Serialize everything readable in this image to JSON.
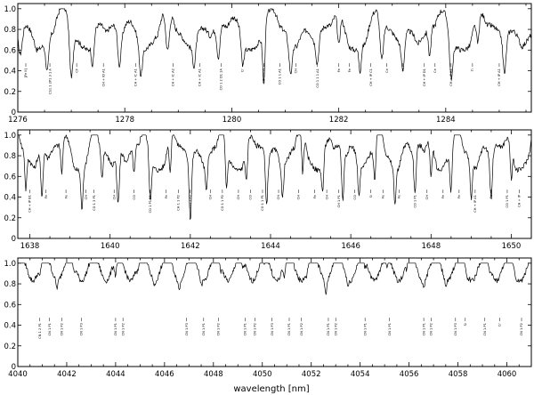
{
  "chart_data": [
    {
      "type": "line",
      "panel": "top",
      "xlim": [
        1276,
        1285.6
      ],
      "ylim": [
        0,
        1.05
      ],
      "x_ticks": [
        "1276",
        "1278",
        "1280",
        "1282",
        "1284"
      ],
      "y_ticks": [
        "0",
        "0.2",
        "0.4",
        "0.6",
        "0.8",
        "1.0"
      ],
      "series": [
        {
          "continuum": 0.72,
          "lines": [
            [
              1276.05,
              0.22,
              0.1
            ],
            [
              1276.55,
              0.3,
              0.08
            ],
            [
              1277.0,
              0.45,
              0.09
            ],
            [
              1277.4,
              0.28,
              0.07
            ],
            [
              1277.9,
              0.38,
              0.09
            ],
            [
              1278.3,
              0.25,
              0.08
            ],
            [
              1278.8,
              0.42,
              0.1
            ],
            [
              1279.3,
              0.22,
              0.07
            ],
            [
              1279.75,
              0.3,
              0.08
            ],
            [
              1280.2,
              0.25,
              0.07
            ],
            [
              1280.6,
              0.52,
              0.06
            ],
            [
              1281.1,
              0.32,
              0.09
            ],
            [
              1281.6,
              0.27,
              0.08
            ],
            [
              1282.0,
              0.3,
              0.07
            ],
            [
              1282.4,
              0.22,
              0.06
            ],
            [
              1282.8,
              0.38,
              0.09
            ],
            [
              1283.2,
              0.3,
              0.08
            ],
            [
              1283.7,
              0.26,
              0.07
            ],
            [
              1284.1,
              0.4,
              0.09
            ],
            [
              1284.6,
              0.26,
              0.07
            ],
            [
              1285.1,
              0.33,
              0.08
            ]
          ]
        }
      ],
      "identifications": [
        {
          "x": 1276.15,
          "label": "[Fe II]"
        },
        {
          "x": 1276.6,
          "label": "CS1 1 2P1 3 1 A"
        },
        {
          "x": 1277.1,
          "label": "CF"
        },
        {
          "x": 1277.6,
          "label": "CH + ID A1"
        },
        {
          "x": 1278.2,
          "label": "CH + IC A1"
        },
        {
          "x": 1278.9,
          "label": "CH + IC A2"
        },
        {
          "x": 1279.4,
          "label": "CH + IC A1"
        },
        {
          "x": 1279.8,
          "label": "CO 1 2 D1 1A"
        },
        {
          "x": 1280.2,
          "label": "Cr"
        },
        {
          "x": 1280.6,
          "label": "CO blend"
        },
        {
          "x": 1280.9,
          "label": "CO 1 1 A1"
        },
        {
          "x": 1281.2,
          "label": "CH"
        },
        {
          "x": 1281.6,
          "label": "CO 1 1 1 A1"
        },
        {
          "x": 1282.0,
          "label": "Fe"
        },
        {
          "x": 1282.2,
          "label": "Fe"
        },
        {
          "x": 1282.6,
          "label": "CH + IP C1"
        },
        {
          "x": 1282.9,
          "label": "Ce"
        },
        {
          "x": 1283.2,
          "label": "H"
        },
        {
          "x": 1283.6,
          "label": "CH + IP D1"
        },
        {
          "x": 1283.8,
          "label": "Ce"
        },
        {
          "x": 1284.1,
          "label": "CH + IP B1"
        },
        {
          "x": 1284.5,
          "label": "Ti"
        },
        {
          "x": 1285.0,
          "label": "CH + IP A1"
        }
      ]
    },
    {
      "type": "line",
      "panel": "middle",
      "xlim": [
        1637.7,
        1650.5
      ],
      "ylim": [
        0,
        1.05
      ],
      "x_ticks": [
        "1638",
        "1640",
        "1642",
        "1644",
        "1646",
        "1648",
        "1650"
      ],
      "y_ticks": [
        "0",
        "0.2",
        "0.4",
        "0.6",
        "0.8",
        "1.0"
      ],
      "series": [
        {
          "continuum": 0.78,
          "lines": [
            [
              1637.9,
              0.35,
              0.07
            ],
            [
              1638.3,
              0.45,
              0.08
            ],
            [
              1638.8,
              0.3,
              0.07
            ],
            [
              1639.3,
              0.4,
              0.08
            ],
            [
              1639.8,
              0.3,
              0.07
            ],
            [
              1640.2,
              0.5,
              0.09
            ],
            [
              1640.6,
              0.25,
              0.07
            ],
            [
              1641.0,
              0.42,
              0.08
            ],
            [
              1641.5,
              0.35,
              0.07
            ],
            [
              1642.0,
              0.55,
              0.08
            ],
            [
              1642.4,
              0.3,
              0.07
            ],
            [
              1642.9,
              0.45,
              0.08
            ],
            [
              1643.4,
              0.35,
              0.07
            ],
            [
              1643.9,
              0.48,
              0.08
            ],
            [
              1644.3,
              0.3,
              0.07
            ],
            [
              1644.8,
              0.4,
              0.07
            ],
            [
              1645.3,
              0.33,
              0.07
            ],
            [
              1645.8,
              0.5,
              0.08
            ],
            [
              1646.2,
              0.28,
              0.07
            ],
            [
              1646.6,
              0.42,
              0.08
            ],
            [
              1647.1,
              0.35,
              0.07
            ],
            [
              1647.6,
              0.45,
              0.08
            ],
            [
              1648.0,
              0.3,
              0.07
            ],
            [
              1648.5,
              0.4,
              0.08
            ],
            [
              1649.0,
              0.35,
              0.07
            ],
            [
              1649.5,
              0.45,
              0.08
            ],
            [
              1650.0,
              0.3,
              0.07
            ]
          ]
        }
      ],
      "identifications": [
        {
          "x": 1638.0,
          "label": "CH + IP B1"
        },
        {
          "x": 1638.4,
          "label": "Fe"
        },
        {
          "x": 1638.9,
          "label": "Fe"
        },
        {
          "x": 1639.4,
          "label": "CH"
        },
        {
          "x": 1639.6,
          "label": "CO 1 3 P1"
        },
        {
          "x": 1640.1,
          "label": "CH"
        },
        {
          "x": 1640.6,
          "label": "CO"
        },
        {
          "x": 1641.0,
          "label": "CO 1 P1 B1"
        },
        {
          "x": 1641.4,
          "label": "Fe"
        },
        {
          "x": 1641.7,
          "label": "CH 1 1 P2"
        },
        {
          "x": 1642.0,
          "label": "CO 1 P2"
        },
        {
          "x": 1642.5,
          "label": "CH"
        },
        {
          "x": 1642.8,
          "label": "CO 1 1 P2"
        },
        {
          "x": 1643.2,
          "label": "CH"
        },
        {
          "x": 1643.5,
          "label": "CO"
        },
        {
          "x": 1643.8,
          "label": "CO 1 1 P1"
        },
        {
          "x": 1644.2,
          "label": "CH"
        },
        {
          "x": 1644.7,
          "label": "CH"
        },
        {
          "x": 1645.1,
          "label": "Fe"
        },
        {
          "x": 1645.4,
          "label": "CH"
        },
        {
          "x": 1645.7,
          "label": "CH 1 P1"
        },
        {
          "x": 1646.1,
          "label": "CO"
        },
        {
          "x": 1646.5,
          "label": "Si"
        },
        {
          "x": 1646.8,
          "label": "Fe"
        },
        {
          "x": 1647.2,
          "label": "Fe"
        },
        {
          "x": 1647.6,
          "label": "CO 1 P1"
        },
        {
          "x": 1647.9,
          "label": "CH"
        },
        {
          "x": 1648.3,
          "label": "Fe"
        },
        {
          "x": 1648.7,
          "label": "Fe"
        },
        {
          "x": 1649.1,
          "label": "CH + IP A1"
        },
        {
          "x": 1649.5,
          "label": "Fe"
        },
        {
          "x": 1649.9,
          "label": "CO 1 P1"
        },
        {
          "x": 1650.2,
          "label": "CH + IP"
        }
      ]
    },
    {
      "type": "line",
      "panel": "bottom",
      "xlim": [
        4040,
        4061
      ],
      "ylim": [
        0,
        1.05
      ],
      "x_ticks": [
        "4040",
        "4042",
        "4044",
        "4046",
        "4048",
        "4050",
        "4052",
        "4054",
        "4056",
        "4058",
        "4060"
      ],
      "y_ticks": [
        "0",
        "0.2",
        "0.4",
        "0.6",
        "0.8",
        "1.0"
      ],
      "xlabel": "wavelength [nm]",
      "series": [
        {
          "continuum": 0.95,
          "lines": [
            [
              4040.9,
              0.1,
              0.12
            ],
            [
              4041.6,
              0.07,
              0.1
            ],
            [
              4042.3,
              0.08,
              0.12
            ],
            [
              4043.1,
              0.06,
              0.1
            ],
            [
              4044.0,
              0.16,
              0.12
            ],
            [
              4044.9,
              0.06,
              0.1
            ],
            [
              4045.6,
              0.05,
              0.1
            ],
            [
              4046.6,
              0.08,
              0.12
            ],
            [
              4047.5,
              0.07,
              0.1
            ],
            [
              4048.3,
              0.06,
              0.1
            ],
            [
              4049.2,
              0.09,
              0.12
            ],
            [
              4050.1,
              0.07,
              0.1
            ],
            [
              4050.9,
              0.13,
              0.1
            ],
            [
              4051.8,
              0.06,
              0.1
            ],
            [
              4052.6,
              0.12,
              0.12
            ],
            [
              4053.5,
              0.07,
              0.1
            ],
            [
              4054.2,
              0.08,
              0.1
            ],
            [
              4055.1,
              0.1,
              0.12
            ],
            [
              4055.9,
              0.06,
              0.1
            ],
            [
              4056.6,
              0.08,
              0.1
            ],
            [
              4057.5,
              0.07,
              0.1
            ],
            [
              4058.4,
              0.05,
              0.1
            ],
            [
              4059.3,
              0.07,
              0.1
            ],
            [
              4060.4,
              0.08,
              0.12
            ]
          ]
        }
      ],
      "identifications": [
        {
          "x": 4040.9,
          "label": "CN 1 2 P1"
        },
        {
          "x": 4041.3,
          "label": "CN 1 P1"
        },
        {
          "x": 4041.8,
          "label": "CN 1 P2"
        },
        {
          "x": 4042.6,
          "label": "CN 1 P3"
        },
        {
          "x": 4044.0,
          "label": "CN 1 P1"
        },
        {
          "x": 4044.3,
          "label": "CN 1 P2"
        },
        {
          "x": 4046.9,
          "label": "CN 1 P3"
        },
        {
          "x": 4047.6,
          "label": "CN 1 P1"
        },
        {
          "x": 4048.2,
          "label": "CN 1 P2"
        },
        {
          "x": 4049.3,
          "label": "CN 1 P1"
        },
        {
          "x": 4049.7,
          "label": "CN 1 P2"
        },
        {
          "x": 4050.4,
          "label": "CN 1 P3"
        },
        {
          "x": 4051.1,
          "label": "CN 1 P1"
        },
        {
          "x": 4051.6,
          "label": "CN 1 P2"
        },
        {
          "x": 4052.7,
          "label": "CN 1 P1"
        },
        {
          "x": 4053.0,
          "label": "CN 1 P2"
        },
        {
          "x": 4054.2,
          "label": "CN 1 P1"
        },
        {
          "x": 4055.2,
          "label": "CN 1 P1"
        },
        {
          "x": 4056.6,
          "label": "CN 1 P1"
        },
        {
          "x": 4056.9,
          "label": "CN 1 P2"
        },
        {
          "x": 4057.9,
          "label": "CN 1 P3"
        },
        {
          "x": 4058.3,
          "label": "Si"
        },
        {
          "x": 4059.1,
          "label": "CN 1 P1"
        },
        {
          "x": 4059.7,
          "label": "Cr"
        },
        {
          "x": 4060.6,
          "label": "CN 1 P2"
        }
      ]
    }
  ]
}
